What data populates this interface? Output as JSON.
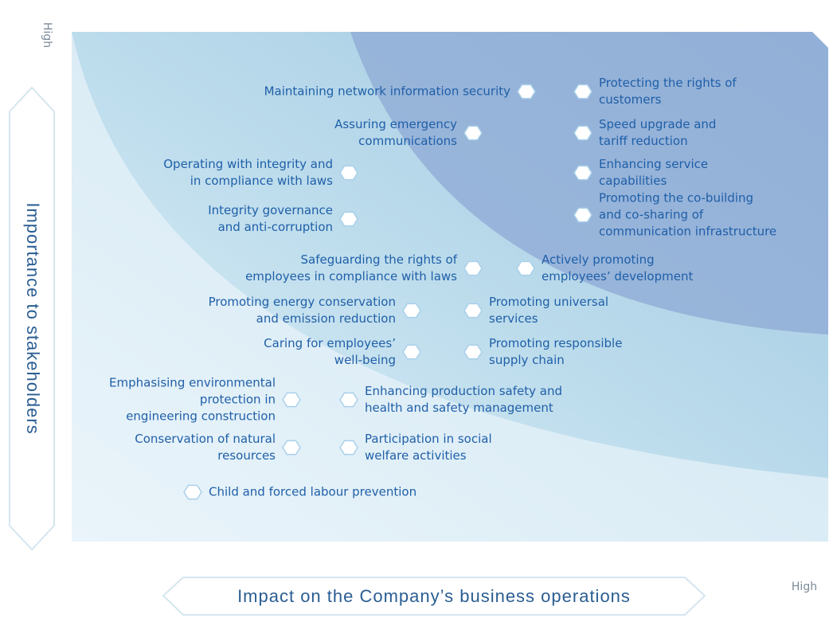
{
  "y_axis": {
    "title": "Importance to stakeholders",
    "high": "High"
  },
  "x_axis": {
    "title": "Impact on the Company’s business operations",
    "high": "High"
  },
  "items": [
    {
      "lines": [
        "Maintaining network information security"
      ]
    },
    {
      "lines": [
        "Protecting the rights of",
        "customers"
      ]
    },
    {
      "lines": [
        "Assuring emergency",
        "communications"
      ]
    },
    {
      "lines": [
        "Speed upgrade and",
        "tariff reduction"
      ]
    },
    {
      "lines": [
        "Operating with integrity and",
        "in compliance with laws"
      ]
    },
    {
      "lines": [
        "Enhancing service",
        "capabilities"
      ]
    },
    {
      "lines": [
        "Integrity governance",
        "and anti-corruption"
      ]
    },
    {
      "lines": [
        "Promoting the co-building",
        "and co-sharing of",
        "communication infrastructure"
      ]
    },
    {
      "lines": [
        "Safeguarding the rights of",
        "employees in compliance with laws"
      ]
    },
    {
      "lines": [
        "Actively promoting",
        "employees’ development"
      ]
    },
    {
      "lines": [
        "Promoting energy conservation",
        "and emission reduction"
      ]
    },
    {
      "lines": [
        "Promoting universal",
        "services"
      ]
    },
    {
      "lines": [
        "Caring for employees’",
        "well-being"
      ]
    },
    {
      "lines": [
        "Promoting responsible",
        "supply chain"
      ]
    },
    {
      "lines": [
        "Emphasising environmental",
        "protection in",
        "engineering construction"
      ]
    },
    {
      "lines": [
        "Enhancing production safety and",
        "health and safety management"
      ]
    },
    {
      "lines": [
        "Conservation of natural",
        "resources"
      ]
    },
    {
      "lines": [
        "Participation in social",
        "welfare activities"
      ]
    },
    {
      "lines": [
        "Child and forced labour prevention"
      ]
    }
  ]
}
